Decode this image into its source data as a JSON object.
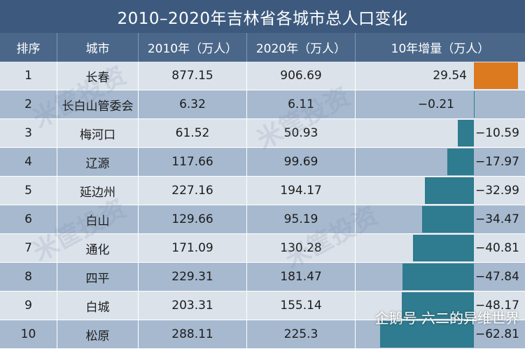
{
  "title": "2010–2020年吉林省各城市总人口变化",
  "headers": [
    "排序",
    "城市",
    "2010年（万人）",
    "2020年（万人）",
    "10年增量（万人）"
  ],
  "watermark": "米筐投资",
  "credit": "企鹅号 六二的异维世界",
  "colors": {
    "positive_bar": "#dc7a1f",
    "negative_bar": "#2f7b8f",
    "title_bg": "#3d5a7e",
    "header_bg": "#4a6789"
  },
  "chart_data": {
    "type": "table",
    "title": "2010–2020年吉林省各城市总人口变化",
    "columns": [
      "排序",
      "城市",
      "2010年（万人）",
      "2020年（万人）",
      "10年增量（万人）"
    ],
    "rows": [
      {
        "rank": "1",
        "city": "长春",
        "y2010": "877.15",
        "y2020": "906.69",
        "diff": "29.54",
        "value": 29.54
      },
      {
        "rank": "2",
        "city": "长白山管委会",
        "y2010": "6.32",
        "y2020": "6.11",
        "diff": "−0.21",
        "value": -0.21
      },
      {
        "rank": "3",
        "city": "梅河口",
        "y2010": "61.52",
        "y2020": "50.93",
        "diff": "−10.59",
        "value": -10.59
      },
      {
        "rank": "4",
        "city": "辽源",
        "y2010": "117.66",
        "y2020": "99.69",
        "diff": "−17.97",
        "value": -17.97
      },
      {
        "rank": "5",
        "city": "延边州",
        "y2010": "227.16",
        "y2020": "194.17",
        "diff": "−32.99",
        "value": -32.99
      },
      {
        "rank": "6",
        "city": "白山",
        "y2010": "129.66",
        "y2020": "95.19",
        "diff": "−34.47",
        "value": -34.47
      },
      {
        "rank": "7",
        "city": "通化",
        "y2010": "171.09",
        "y2020": "130.28",
        "diff": "−40.81",
        "value": -40.81
      },
      {
        "rank": "8",
        "city": "四平",
        "y2010": "229.31",
        "y2020": "181.47",
        "diff": "−47.84",
        "value": -47.84
      },
      {
        "rank": "9",
        "city": "白城",
        "y2010": "203.31",
        "y2020": "155.14",
        "diff": "−48.17",
        "value": -48.17
      },
      {
        "rank": "10",
        "city": "松原",
        "y2010": "288.11",
        "y2020": "225.3",
        "diff": "−62.81",
        "value": -62.81
      }
    ]
  }
}
